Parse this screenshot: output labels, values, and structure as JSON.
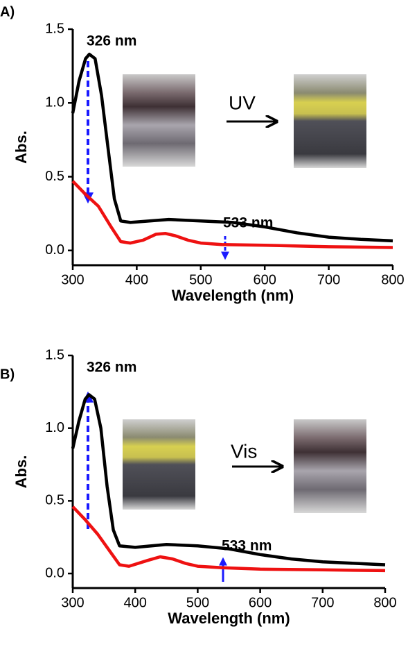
{
  "chart_data": [
    {
      "type": "line",
      "panel_label": "A)",
      "x_label": "Wavelength (nm)",
      "y_label": "Abs.",
      "annotations": [
        "326 nm",
        "533 nm"
      ],
      "process_label": "UV",
      "xlim": [
        300,
        800
      ],
      "xticks": [
        300,
        400,
        500,
        600,
        700,
        800
      ],
      "ylim": [
        -0.1,
        1.5
      ],
      "yticks": [
        {
          "value": 0,
          "label": "0.0"
        },
        0.5,
        {
          "value": 1,
          "label": "1.0"
        },
        1.5
      ],
      "series": [
        {
          "color": "#000000",
          "x": [
            300,
            310,
            320,
            326,
            335,
            345,
            355,
            365,
            375,
            390,
            420,
            450,
            500,
            550,
            600,
            650,
            700,
            750,
            800
          ],
          "values": [
            0.93,
            1.15,
            1.3,
            1.33,
            1.3,
            1.05,
            0.7,
            0.35,
            0.2,
            0.19,
            0.2,
            0.21,
            0.2,
            0.19,
            0.16,
            0.12,
            0.09,
            0.075,
            0.065
          ]
        },
        {
          "color": "#ee1111",
          "x": [
            300,
            320,
            340,
            360,
            375,
            390,
            410,
            430,
            445,
            460,
            480,
            500,
            533,
            600,
            700,
            800
          ],
          "values": [
            0.47,
            0.38,
            0.3,
            0.16,
            0.06,
            0.05,
            0.07,
            0.11,
            0.115,
            0.1,
            0.07,
            0.05,
            0.04,
            0.035,
            0.025,
            0.02
          ]
        }
      ]
    },
    {
      "type": "line",
      "panel_label": "B)",
      "x_label": "Wavelength (nm)",
      "y_label": "Abs.",
      "annotations": [
        "326 nm",
        "533 nm"
      ],
      "process_label": "Vis",
      "xlim": [
        300,
        800
      ],
      "xticks": [
        300,
        400,
        500,
        600,
        700,
        800
      ],
      "ylim": [
        -0.1,
        1.5
      ],
      "yticks": [
        {
          "value": 0,
          "label": "0.0"
        },
        0.5,
        {
          "value": 1,
          "label": "1.0"
        },
        1.5
      ],
      "series": [
        {
          "color": "#000000",
          "x": [
            300,
            310,
            320,
            326,
            335,
            345,
            355,
            365,
            375,
            400,
            450,
            500,
            550,
            600,
            650,
            700,
            800
          ],
          "values": [
            0.86,
            1.05,
            1.2,
            1.23,
            1.2,
            1.0,
            0.6,
            0.3,
            0.19,
            0.18,
            0.2,
            0.19,
            0.17,
            0.13,
            0.1,
            0.08,
            0.06
          ]
        },
        {
          "color": "#ee1111",
          "x": [
            300,
            320,
            340,
            360,
            375,
            390,
            420,
            440,
            460,
            480,
            500,
            540,
            600,
            700,
            800
          ],
          "values": [
            0.46,
            0.37,
            0.27,
            0.15,
            0.06,
            0.05,
            0.09,
            0.115,
            0.1,
            0.07,
            0.05,
            0.04,
            0.03,
            0.025,
            0.02
          ]
        }
      ]
    }
  ]
}
